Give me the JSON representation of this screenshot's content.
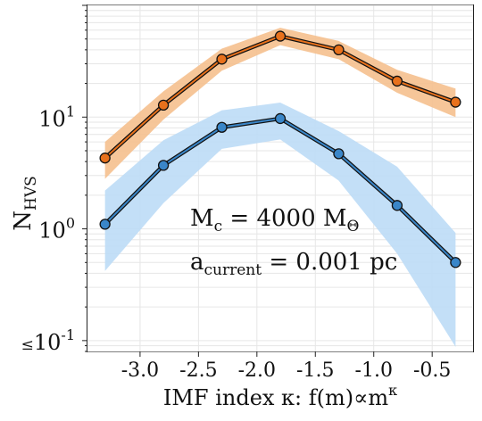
{
  "chart_data": {
    "type": "line",
    "yscale": "log",
    "x": [
      -3.3,
      -2.8,
      -2.3,
      -1.8,
      -1.3,
      -0.8,
      -0.3
    ],
    "xlim": [
      -3.45,
      -0.15
    ],
    "ylim": [
      0.08,
      100
    ],
    "grid": true,
    "xticks": [
      {
        "v": -3.0,
        "label": "-3.0"
      },
      {
        "v": -2.5,
        "label": "-2.5"
      },
      {
        "v": -2.0,
        "label": "-2.0"
      },
      {
        "v": -1.5,
        "label": "-1.5"
      },
      {
        "v": -1.0,
        "label": "-1.0"
      },
      {
        "v": -0.5,
        "label": "-0.5"
      }
    ],
    "yticks": [
      {
        "v": 10,
        "base": "10",
        "exp": "1",
        "prefix": ""
      },
      {
        "v": 1,
        "base": "10",
        "exp": "0",
        "prefix": ""
      },
      {
        "v": 0.1,
        "base": "10",
        "exp": "-1",
        "prefix": "≤"
      }
    ],
    "ylabel": {
      "main": "N",
      "sub": "HVS"
    },
    "xlabel": {
      "main": "IMF index κ: f(m)∝m",
      "sup": "κ"
    },
    "series": [
      {
        "color": "#e8711c",
        "band_color": "#f5c08e",
        "values": [
          4.3,
          12.8,
          33,
          53,
          40,
          21,
          13.6
        ],
        "lower": [
          2.8,
          9.5,
          26,
          44,
          33,
          16.5,
          10.0
        ],
        "upper": [
          6.0,
          17.0,
          41,
          63,
          48,
          26.5,
          18.0
        ]
      },
      {
        "color": "#3a86c8",
        "band_color": "#bcdcf6",
        "values": [
          1.1,
          3.7,
          8.1,
          9.7,
          4.7,
          1.62,
          0.5
        ],
        "lower": [
          0.42,
          1.7,
          5.2,
          6.3,
          2.7,
          0.6,
          0.088
        ],
        "upper": [
          2.2,
          6.2,
          11.5,
          13.5,
          7.5,
          3.6,
          0.92
        ]
      }
    ],
    "annotations": [
      {
        "main": "M",
        "sub": "c",
        "rest": " = 4000 M",
        "sub2": "Θ"
      },
      {
        "main": "a",
        "sub": "current",
        "rest": " = 0.001 pc",
        "sub2": ""
      }
    ]
  }
}
